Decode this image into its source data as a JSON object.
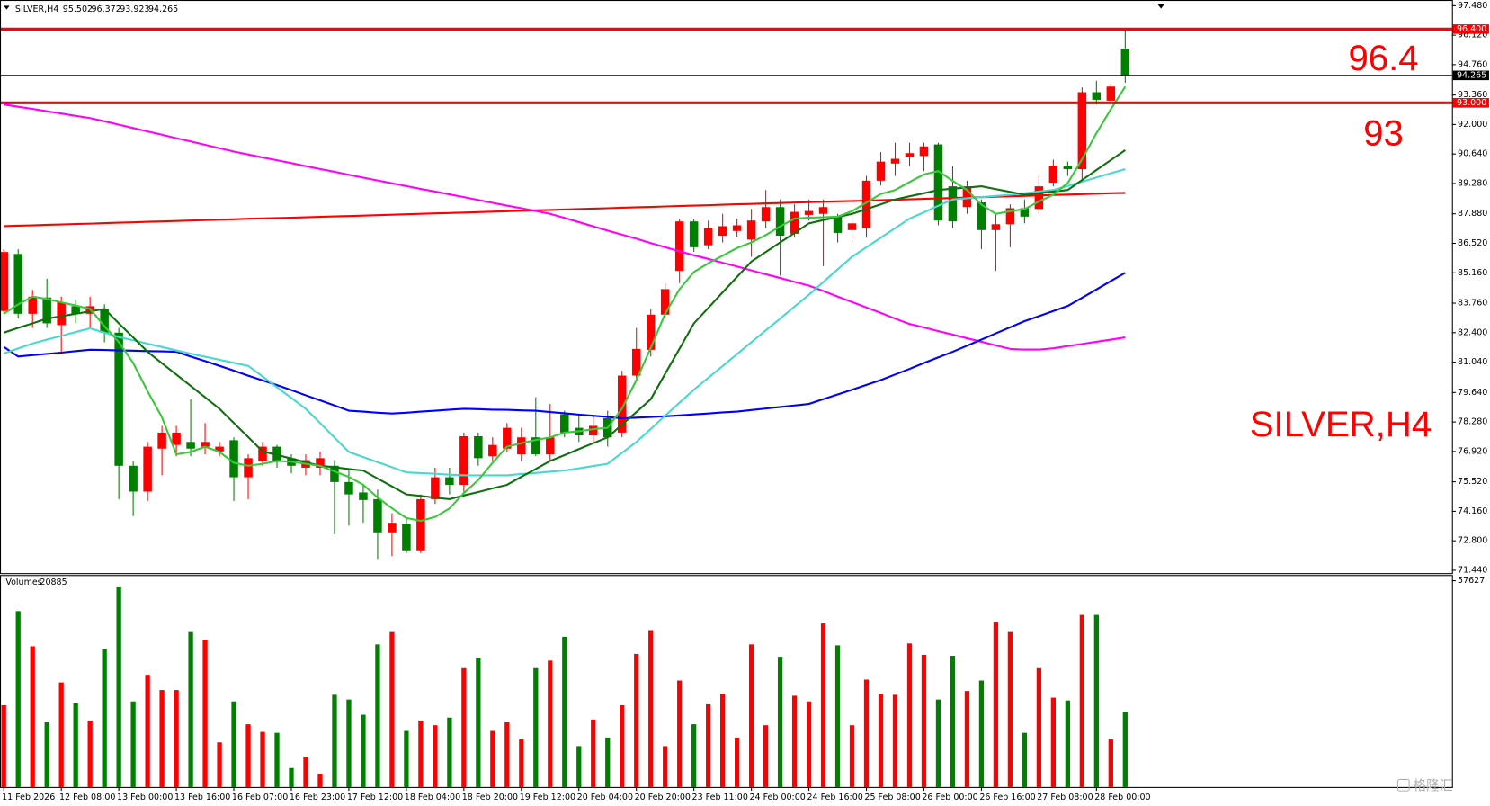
{
  "chart_data": [
    {
      "type": "candlestick",
      "title": "SILVER,H4",
      "categories": [
        "11 Feb 2026",
        null,
        null,
        null,
        "12 Feb 08:00",
        null,
        null,
        null,
        "13 Feb 00:00",
        null,
        null,
        null,
        "13 Feb 16:00",
        null,
        null,
        null,
        "16 Feb 07:00",
        null,
        null,
        null,
        "16 Feb 23:00",
        null,
        null,
        null,
        "17 Feb 12:00",
        null,
        null,
        null,
        "18 Feb 04:00",
        null,
        null,
        null,
        "18 Feb 20:00",
        null,
        null,
        null,
        "19 Feb 12:00",
        null,
        null,
        null,
        "20 Feb 04:00",
        null,
        null,
        null,
        "20 Feb 20:00",
        null,
        null,
        null,
        "23 Feb 11:00",
        null,
        null,
        null,
        "24 Feb 00:00",
        null,
        null,
        null,
        "24 Feb 16:00",
        null,
        null,
        null,
        "25 Feb 08:00",
        null,
        null,
        null,
        "26 Feb 00:00",
        null,
        null,
        null,
        "26 Feb 16:00",
        null,
        null,
        null,
        "27 Feb 08:00",
        null,
        null,
        null,
        "28 Feb 00:00",
        null,
        null
      ],
      "open": [
        83.4,
        86.03,
        83.27,
        84.02,
        82.75,
        83.62,
        83.27,
        83.49,
        82.4,
        76.26,
        75.07,
        77.05,
        77.22,
        77.36,
        77.14,
        76.92,
        77.44,
        75.73,
        76.48,
        77.14,
        76.61,
        76.17,
        76.17,
        76.26,
        75.51,
        75.03,
        74.72,
        73.19,
        73.58,
        72.36,
        74.72,
        75.73,
        75.38,
        77.62,
        76.7,
        77.05,
        76.79,
        77.57,
        76.79,
        78.63,
        78.01,
        77.66,
        78.45,
        77.79,
        80.42,
        81.61,
        83.23,
        85.25,
        87.53,
        86.43,
        86.87,
        87.09,
        86.69,
        87.53,
        88.19,
        86.96,
        87.83,
        87.88,
        87.75,
        87.13,
        87.22,
        89.41,
        90.2,
        90.51,
        90.55,
        91.08,
        89.15,
        88.19,
        88.41,
        87.13,
        87.4,
        88.14,
        88.1,
        89.32,
        90.11,
        89.94,
        93.49,
        93.1,
        95.502
      ],
      "high": [
        86.25,
        86.25,
        84.37,
        84.89,
        84.06,
        83.93,
        84.06,
        83.71,
        82.62,
        76.48,
        77.36,
        78.1,
        78.1,
        79.33,
        78.23,
        77.36,
        77.57,
        76.79,
        77.36,
        77.22,
        76.79,
        76.79,
        76.92,
        76.52,
        76.04,
        75.38,
        75.16,
        74.07,
        73.85,
        74.94,
        76.17,
        76.17,
        77.79,
        77.79,
        77.57,
        78.23,
        78.01,
        79.42,
        79.11,
        78.8,
        78.54,
        78.54,
        78.8,
        80.64,
        82.62,
        83.49,
        84.68,
        87.66,
        87.66,
        87.57,
        87.88,
        87.66,
        88.1,
        88.98,
        88.54,
        88.32,
        88.54,
        88.54,
        87.88,
        87.88,
        89.63,
        90.73,
        91.16,
        91.16,
        91.16,
        91.16,
        90.07,
        89.41,
        88.54,
        87.88,
        88.32,
        88.54,
        89.63,
        90.38,
        90.29,
        93.71,
        94.02,
        93.88,
        96.372
      ],
      "low": [
        83.27,
        83.05,
        82.62,
        82.62,
        81.52,
        82.83,
        82.62,
        81.96,
        74.72,
        73.94,
        74.64,
        75.82,
        76.7,
        76.7,
        76.79,
        76.7,
        74.64,
        74.72,
        76.26,
        76.17,
        75.91,
        75.82,
        75.82,
        73.1,
        73.5,
        73.63,
        71.96,
        72.09,
        72.23,
        72.23,
        74.5,
        74.94,
        74.94,
        76.26,
        76.48,
        76.88,
        76.48,
        76.7,
        76.48,
        77.57,
        77.36,
        77.36,
        77.14,
        77.57,
        80.21,
        81.3,
        83.05,
        84.68,
        86.12,
        86.25,
        86.56,
        86.78,
        85.9,
        87.22,
        85.03,
        86.78,
        87.57,
        85.47,
        86.56,
        86.56,
        86.78,
        89.19,
        89.63,
        90.07,
        89.85,
        87.35,
        87.22,
        87.88,
        86.25,
        85.25,
        86.34,
        87.44,
        87.88,
        89.15,
        89.63,
        89.41,
        92.92,
        92.92,
        93.923
      ],
      "close": [
        86.12,
        83.27,
        84.06,
        82.83,
        83.8,
        83.27,
        83.62,
        82.4,
        76.26,
        75.07,
        77.14,
        77.79,
        77.79,
        77.05,
        77.36,
        77.14,
        75.73,
        76.61,
        77.14,
        76.48,
        76.26,
        76.52,
        76.61,
        75.51,
        74.94,
        74.68,
        73.19,
        73.63,
        72.36,
        74.72,
        75.73,
        75.38,
        77.62,
        76.61,
        77.22,
        78.01,
        77.57,
        76.79,
        77.57,
        77.79,
        77.66,
        78.1,
        77.57,
        80.42,
        81.65,
        83.23,
        84.41,
        87.53,
        86.34,
        87.22,
        87.31,
        87.35,
        87.57,
        88.19,
        86.87,
        87.97,
        88.01,
        88.19,
        87.0,
        87.44,
        89.41,
        90.29,
        90.42,
        90.68,
        90.99,
        87.57,
        87.53,
        89.15,
        87.13,
        87.4,
        88.14,
        87.75,
        89.15,
        90.11,
        89.94,
        93.49,
        93.14,
        93.75,
        94.265
      ],
      "up_color": "#ff0000",
      "down_color": "#008000",
      "series": [
        {
          "color": "#ff0000",
          "values": [
            87.31,
            87.33,
            87.35,
            87.37,
            87.39,
            87.41,
            87.43,
            87.45,
            87.47,
            87.49,
            87.51,
            87.53,
            87.55,
            87.57,
            87.59,
            87.61,
            87.63,
            87.65,
            87.67,
            87.68,
            87.7,
            87.72,
            87.74,
            87.76,
            87.78,
            87.8,
            87.82,
            87.84,
            87.86,
            87.88,
            87.9,
            87.92,
            87.94,
            87.96,
            87.98,
            88.0,
            88.02,
            88.04,
            88.06,
            88.08,
            88.1,
            88.12,
            88.14,
            88.16,
            88.18,
            88.2,
            88.22,
            88.24,
            88.26,
            88.28,
            88.3,
            88.32,
            88.34,
            88.36,
            88.38,
            88.4,
            88.42,
            88.44,
            88.46,
            88.47,
            88.49,
            88.51,
            88.53,
            88.55,
            88.57,
            88.59,
            88.61,
            88.63,
            88.65,
            88.67,
            88.69,
            88.71,
            88.73,
            88.75,
            88.77,
            88.79,
            88.81,
            88.83,
            88.85
          ]
        },
        {
          "color": "#ff00ff",
          "values": [
            92.92,
            92.82,
            92.72,
            92.61,
            92.51,
            92.4,
            92.3,
            92.15,
            91.99,
            91.84,
            91.68,
            91.53,
            91.37,
            91.22,
            91.06,
            90.91,
            90.75,
            90.62,
            90.48,
            90.35,
            90.22,
            90.08,
            89.95,
            89.82,
            89.68,
            89.55,
            89.42,
            89.29,
            89.16,
            89.03,
            88.91,
            88.78,
            88.65,
            88.52,
            88.39,
            88.26,
            88.14,
            88.01,
            87.88,
            87.69,
            87.5,
            87.3,
            87.11,
            86.92,
            86.73,
            86.53,
            86.34,
            86.15,
            85.97,
            85.8,
            85.62,
            85.45,
            85.27,
            85.09,
            84.92,
            84.74,
            84.57,
            84.32,
            84.06,
            83.81,
            83.56,
            83.31,
            83.05,
            82.8,
            82.64,
            82.47,
            82.31,
            82.14,
            81.98,
            81.81,
            81.65,
            81.62,
            81.62,
            81.68,
            81.78,
            81.88,
            81.98,
            82.08,
            82.18
          ]
        },
        {
          "color": "#0000ff",
          "values": [
            81.74,
            81.3,
            81.36,
            81.42,
            81.48,
            81.55,
            81.61,
            81.6,
            81.58,
            81.57,
            81.55,
            81.54,
            81.52,
            81.3,
            81.09,
            80.87,
            80.65,
            80.42,
            80.2,
            79.98,
            79.75,
            79.51,
            79.28,
            79.04,
            78.8,
            78.76,
            78.71,
            78.67,
            78.71,
            78.76,
            78.8,
            78.85,
            78.89,
            78.87,
            78.85,
            78.84,
            78.82,
            78.8,
            78.74,
            78.68,
            78.62,
            78.57,
            78.51,
            78.45,
            78.48,
            78.51,
            78.54,
            78.58,
            78.63,
            78.67,
            78.72,
            78.76,
            78.83,
            78.9,
            78.97,
            79.04,
            79.11,
            79.33,
            79.55,
            79.77,
            79.99,
            80.21,
            80.47,
            80.73,
            81.0,
            81.26,
            81.52,
            81.8,
            82.08,
            82.37,
            82.65,
            82.93,
            83.16,
            83.4,
            83.63,
            84.01,
            84.39,
            84.78,
            85.16
          ]
        },
        {
          "color": "#48d8d0",
          "values": [
            81.44,
            81.67,
            81.9,
            82.08,
            82.25,
            82.43,
            82.6,
            82.4,
            82.2,
            82.05,
            81.89,
            81.74,
            81.58,
            81.43,
            81.29,
            81.15,
            81.01,
            80.87,
            80.38,
            79.88,
            79.39,
            78.89,
            78.23,
            77.56,
            76.9,
            76.66,
            76.43,
            76.19,
            75.95,
            75.92,
            75.89,
            75.85,
            75.82,
            75.82,
            75.82,
            75.82,
            75.88,
            75.93,
            75.99,
            76.04,
            76.14,
            76.25,
            76.35,
            76.86,
            77.36,
            77.96,
            78.57,
            79.17,
            79.77,
            80.32,
            80.86,
            81.41,
            81.96,
            82.51,
            83.05,
            83.6,
            84.15,
            84.73,
            85.32,
            85.9,
            86.34,
            86.78,
            87.22,
            87.66,
            87.95,
            88.25,
            88.54,
            88.6,
            88.65,
            88.71,
            88.76,
            88.83,
            88.91,
            88.98,
            89.17,
            89.36,
            89.56,
            89.75,
            89.94
          ]
        },
        {
          "color": "#107010",
          "values": [
            82.4,
            82.62,
            82.83,
            83.05,
            83.16,
            83.27,
            83.38,
            83.49,
            82.83,
            82.18,
            81.52,
            80.99,
            80.47,
            79.94,
            79.42,
            78.89,
            78.23,
            77.58,
            76.92,
            76.76,
            76.59,
            76.43,
            76.26,
            76.19,
            76.11,
            76.04,
            75.67,
            75.31,
            74.94,
            74.87,
            74.79,
            74.72,
            74.89,
            75.05,
            75.22,
            75.38,
            75.75,
            76.11,
            76.48,
            76.75,
            77.03,
            77.3,
            77.57,
            78.16,
            78.74,
            79.33,
            80.5,
            81.66,
            82.83,
            83.54,
            84.26,
            84.97,
            85.68,
            86.12,
            86.56,
            87.0,
            87.44,
            87.59,
            87.73,
            87.88,
            88.1,
            88.32,
            88.54,
            88.69,
            88.83,
            88.98,
            89.04,
            89.09,
            89.15,
            89.02,
            88.89,
            88.76,
            88.83,
            88.91,
            88.98,
            89.44,
            89.9,
            90.36,
            90.82
          ]
        },
        {
          "color": "#3cc83c",
          "values": [
            83.27,
            83.7,
            84.06,
            83.95,
            83.8,
            83.65,
            83.49,
            82.7,
            81.96,
            81.0,
            79.7,
            78.5,
            76.79,
            76.9,
            77.14,
            76.9,
            76.4,
            76.26,
            76.35,
            76.48,
            76.45,
            76.35,
            76.26,
            76.0,
            75.75,
            75.38,
            74.8,
            74.3,
            73.85,
            73.72,
            73.9,
            74.29,
            75.0,
            75.6,
            76.4,
            77.14,
            77.3,
            77.45,
            77.57,
            77.79,
            77.85,
            77.95,
            78.01,
            78.9,
            80.21,
            81.7,
            83.27,
            84.4,
            85.2,
            85.6,
            85.95,
            86.3,
            86.56,
            86.9,
            87.3,
            87.66,
            87.7,
            87.72,
            87.75,
            88.0,
            88.4,
            88.8,
            88.98,
            89.35,
            89.7,
            89.85,
            89.4,
            88.98,
            88.3,
            87.88,
            88.0,
            88.1,
            88.45,
            88.76,
            89.3,
            90.4,
            91.6,
            92.7,
            93.75
          ]
        }
      ],
      "levels": [
        {
          "value": 96.4,
          "label": "96.400",
          "color": "#ff0000"
        },
        {
          "value": 93,
          "label": "93.000",
          "color": "#ff0000"
        }
      ],
      "ylim": [
        71.44,
        97.48
      ],
      "yticks": [
        {
          "value": 97.48,
          "label": "97.480"
        },
        {
          "value": 96.12,
          "label": "96.120"
        },
        {
          "value": 94.76,
          "label": "94.760"
        },
        {
          "value": 93.36,
          "label": "93.360"
        },
        {
          "value": 92,
          "label": "92.000"
        },
        {
          "value": 90.64,
          "label": "90.640"
        },
        {
          "value": 89.28,
          "label": "89.280"
        },
        {
          "value": 87.88,
          "label": "87.880"
        },
        {
          "value": 86.52,
          "label": "86.520"
        },
        {
          "value": 85.16,
          "label": "85.160"
        },
        {
          "value": 83.76,
          "label": "83.760"
        },
        {
          "value": 82.4,
          "label": "82.400"
        },
        {
          "value": 81.04,
          "label": "81.040"
        },
        {
          "value": 79.64,
          "label": "79.640"
        },
        {
          "value": 78.28,
          "label": "78.280"
        },
        {
          "value": 76.92,
          "label": "76.920"
        },
        {
          "value": 75.52,
          "label": "75.520"
        },
        {
          "value": 74.16,
          "label": "74.160"
        },
        {
          "value": 72.8,
          "label": "72.800"
        },
        {
          "value": 71.44,
          "label": "71.440"
        }
      ],
      "grid": false
    },
    {
      "type": "bar",
      "title": "Volumes",
      "values": [
        22842,
        49136,
        39309,
        18061,
        29216,
        23373,
        18592,
        38512,
        56042,
        23904,
        31341,
        27091,
        27091,
        43293,
        41168,
        12483,
        23904,
        17530,
        15405,
        15139,
        5312,
        8499,
        3718,
        25763,
        24435,
        20186,
        39840,
        43293,
        15670,
        18592,
        17264,
        19389,
        33200,
        36122,
        15670,
        18061,
        13280,
        33200,
        35325,
        41965,
        11421,
        18858,
        13811,
        22842,
        37184,
        43824,
        11421,
        29747,
        17530,
        23107,
        26029,
        13811,
        39840,
        17264,
        36387,
        25498,
        23904,
        45683,
        39574,
        17264,
        30013,
        26029,
        25763,
        40106,
        36918,
        24435,
        36653,
        26826,
        29747,
        45949,
        43293,
        15139,
        33200,
        24966,
        24170,
        48074,
        48074,
        13280,
        20885
      ],
      "ylim": [
        0,
        57627
      ],
      "yticks": [
        57627
      ]
    }
  ],
  "watermark": "格隆汇"
}
